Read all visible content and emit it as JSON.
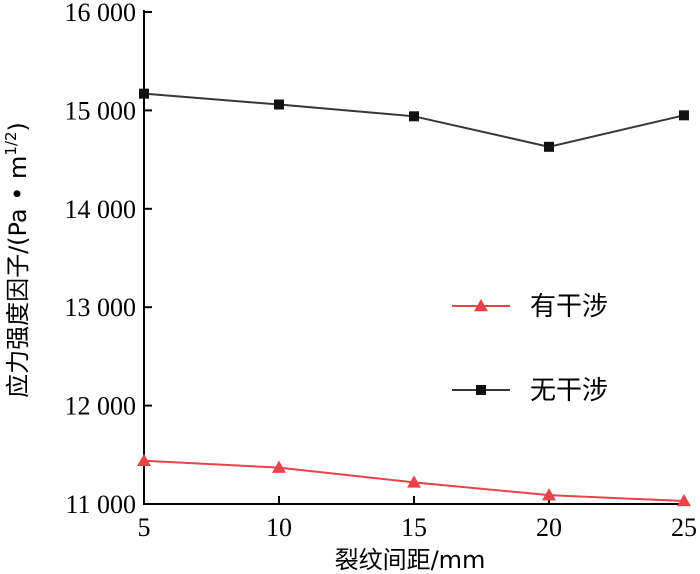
{
  "chart_data": {
    "type": "line",
    "xlabel": "裂纹间距/mm",
    "ylabel": "应力强度因子/(Pa • m",
    "ylabel_sup": "1/2",
    "ylabel_close": ")",
    "xlim": [
      5,
      25
    ],
    "ylim": [
      11000,
      16000
    ],
    "x_ticks": [
      5,
      10,
      15,
      20,
      25
    ],
    "x_tick_labels": [
      "5",
      "10",
      "15",
      "20",
      "25"
    ],
    "y_ticks": [
      11000,
      12000,
      13000,
      14000,
      15000,
      16000
    ],
    "y_tick_labels": [
      "11 000",
      "12 000",
      "13 000",
      "14 000",
      "15 000",
      "16 000"
    ],
    "grid": false,
    "legend_position": "center-right",
    "x": [
      5,
      10,
      15,
      20,
      25
    ],
    "series": [
      {
        "name": "有干涉",
        "values": [
          11440,
          11370,
          11220,
          11090,
          11030
        ],
        "color": "#e8424b",
        "marker": "triangle"
      },
      {
        "name": "无干涉",
        "values": [
          15170,
          15060,
          14940,
          14630,
          14950
        ],
        "color": "#3b3535",
        "marker": "square"
      }
    ]
  }
}
